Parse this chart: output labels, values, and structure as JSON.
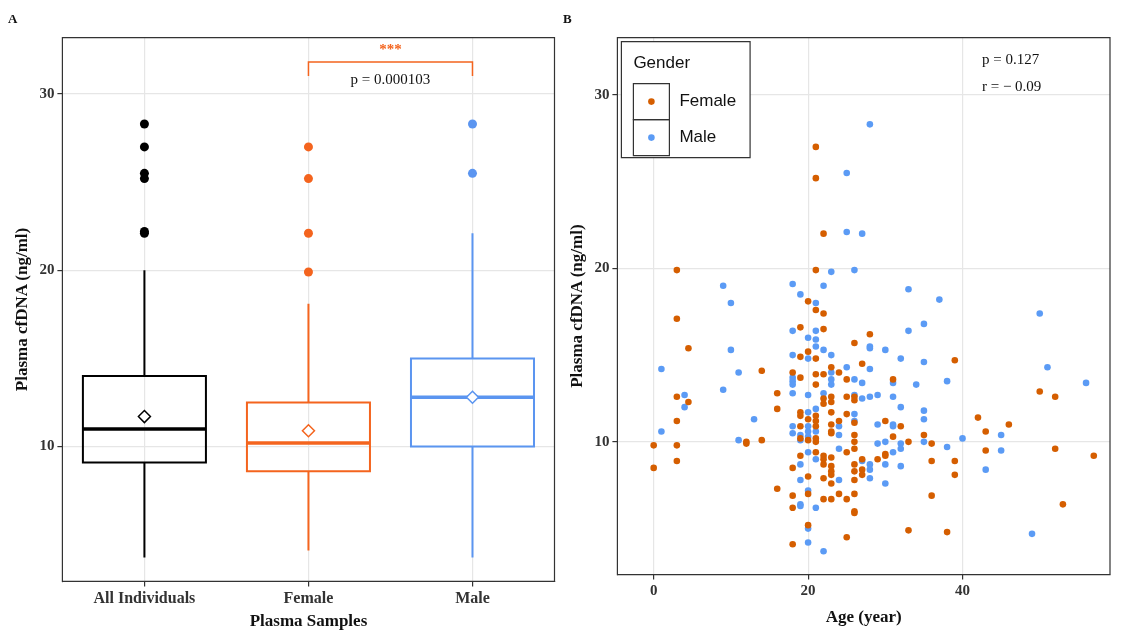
{
  "chart_data": [
    {
      "type": "box",
      "title": "A",
      "xlabel": "Plasma Samples",
      "ylabel": "Plasma cfDNA (ng/ml)",
      "categories": [
        "All Individuals",
        "Female",
        "Male"
      ],
      "colors": [
        "#000000",
        "#f4641e",
        "#5b95f0"
      ],
      "boxes": [
        {
          "low": 3.7,
          "q1": 9.1,
          "median": 11.0,
          "q3": 14.0,
          "high": 20.0,
          "mean": 11.7,
          "outliers": [
            28.3,
            27.0,
            25.5,
            25.2,
            22.2,
            22.1
          ]
        },
        {
          "low": 4.1,
          "q1": 8.6,
          "median": 10.2,
          "q3": 12.5,
          "high": 18.1,
          "mean": 10.9,
          "outliers": [
            27.0,
            25.2,
            22.1,
            19.9
          ]
        },
        {
          "low": 3.7,
          "q1": 10.0,
          "median": 12.8,
          "q3": 15.0,
          "high": 22.1,
          "mean": 12.8,
          "outliers": [
            28.3,
            25.5
          ]
        }
      ],
      "ylim": [
        2.35,
        33.2
      ],
      "yticks": [
        10,
        20,
        30
      ],
      "grid": true,
      "annotations": [
        "***",
        "p = 0.000103"
      ]
    },
    {
      "type": "scatter",
      "title": "B",
      "xlabel": "Age (year)",
      "ylabel": "Plasma cfDNA (ng/ml)",
      "legend_title": "Gender",
      "legend": "top left",
      "series": [
        {
          "name": "Female",
          "color": "#d55e00",
          "x": [
            21,
            21,
            22,
            3,
            21,
            20,
            21,
            22,
            3,
            19,
            22,
            4.5,
            19,
            20,
            21,
            23,
            14,
            18,
            21,
            22,
            24,
            19,
            21,
            16,
            22,
            22,
            23,
            23,
            3,
            4.5,
            16,
            23,
            19,
            19,
            21,
            21,
            20,
            3,
            19,
            21,
            23,
            24,
            23,
            23,
            19,
            20,
            21,
            21,
            12,
            12,
            14,
            0,
            3,
            0,
            3,
            21,
            19,
            22,
            22,
            23,
            22,
            23,
            18,
            23,
            20,
            22,
            23,
            23,
            16,
            20,
            18,
            24,
            23,
            22,
            18,
            20,
            18,
            28,
            26,
            27,
            31,
            39,
            50,
            52,
            25,
            26,
            26,
            25,
            25,
            26,
            30,
            32,
            42,
            46,
            43,
            31,
            35,
            33,
            36,
            43,
            52,
            57,
            26,
            26,
            26,
            25,
            30,
            30,
            29,
            36,
            39,
            39,
            27,
            27,
            27,
            26,
            26,
            26,
            36,
            53,
            25,
            26,
            26,
            26,
            33,
            38,
            25
          ],
          "values": [
            27.0,
            25.2,
            22.0,
            19.9,
            19.9,
            18.1,
            17.6,
            17.4,
            17.1,
            16.6,
            16.5,
            15.4,
            14.9,
            15.2,
            14.8,
            14.3,
            14.1,
            14.0,
            13.9,
            13.9,
            14.0,
            13.7,
            13.3,
            12.8,
            12.5,
            12.2,
            12.6,
            12.3,
            12.6,
            12.3,
            11.9,
            11.7,
            11.7,
            11.5,
            11.5,
            11.2,
            11.3,
            11.2,
            10.9,
            10.9,
            11.0,
            11.2,
            10.6,
            10.5,
            10.2,
            10.1,
            10.2,
            10.0,
            10.0,
            9.9,
            10.1,
            9.8,
            9.8,
            8.5,
            8.9,
            9.4,
            9.2,
            9.2,
            9.0,
            9.1,
            8.7,
            8.6,
            8.5,
            8.3,
            8.0,
            7.9,
            8.1,
            7.6,
            7.3,
            7.0,
            6.9,
            7.0,
            6.7,
            6.7,
            6.2,
            5.2,
            4.1,
            16.2,
            15.7,
            14.5,
            13.6,
            14.7,
            12.9,
            12.6,
            13.6,
            12.6,
            12.4,
            12.6,
            11.6,
            11.1,
            11.2,
            10.9,
            11.4,
            11.0,
            10.6,
            10.3,
            10.4,
            10.0,
            9.9,
            9.5,
            9.6,
            9.2,
            10.4,
            10.0,
            9.6,
            9.4,
            9.3,
            9.2,
            9.0,
            8.9,
            8.9,
            8.1,
            9.0,
            8.4,
            8.1,
            8.7,
            8.3,
            7.8,
            6.9,
            6.4,
            6.7,
            7.0,
            6.0,
            5.9,
            4.9,
            4.8,
            4.5
          ]
        },
        {
          "name": "Male",
          "color": "#5b9bf5",
          "x": [
            23,
            9,
            18,
            19,
            22,
            28,
            25,
            25,
            27,
            26,
            33,
            10,
            21,
            18,
            20,
            21,
            21,
            10,
            21,
            22,
            23,
            20,
            18,
            1,
            11,
            23,
            18,
            18,
            18,
            23,
            23,
            9,
            18,
            20,
            22,
            4,
            4,
            21,
            20,
            13,
            1,
            20,
            24,
            18,
            18,
            19,
            20,
            21,
            24,
            20,
            11,
            19,
            20,
            24,
            21,
            19,
            19,
            24,
            20,
            19,
            19,
            21,
            20,
            20,
            22,
            37,
            50,
            33,
            35,
            28,
            28,
            30,
            32,
            35,
            25,
            28,
            51,
            56,
            38,
            34,
            31,
            26,
            27,
            26,
            27,
            28,
            29,
            31,
            32,
            35,
            35,
            26,
            26,
            29,
            31,
            31,
            40,
            45,
            45,
            35,
            38,
            29,
            30,
            32,
            32,
            31,
            27,
            28,
            28,
            30,
            32,
            28,
            30,
            43,
            49
          ],
          "values": [
            19.8,
            19.0,
            19.1,
            18.5,
            19.0,
            28.3,
            25.5,
            22.1,
            22.0,
            19.9,
            18.8,
            18.0,
            18.0,
            16.4,
            16.0,
            16.4,
            15.9,
            15.3,
            15.5,
            15.3,
            15.0,
            14.8,
            15.0,
            14.2,
            14.0,
            14.0,
            13.7,
            13.5,
            13.3,
            13.6,
            13.3,
            13.0,
            12.8,
            12.7,
            12.8,
            12.7,
            12.0,
            11.9,
            11.7,
            11.3,
            10.6,
            10.9,
            10.9,
            10.9,
            10.5,
            10.4,
            10.6,
            10.6,
            10.4,
            10.3,
            10.1,
            10.1,
            9.4,
            9.6,
            9.0,
            8.7,
            7.8,
            7.8,
            7.2,
            6.4,
            6.3,
            6.2,
            5.0,
            4.2,
            3.7,
            18.2,
            17.4,
            16.4,
            16.8,
            15.5,
            15.4,
            15.3,
            14.8,
            14.6,
            14.3,
            14.2,
            14.3,
            13.4,
            13.5,
            13.3,
            13.4,
            13.6,
            13.4,
            12.7,
            12.5,
            12.6,
            12.7,
            12.6,
            12.0,
            11.8,
            11.3,
            11.6,
            11.2,
            11.0,
            11.0,
            10.9,
            10.2,
            10.4,
            9.5,
            10.0,
            9.7,
            9.9,
            10.0,
            9.9,
            9.6,
            9.4,
            8.9,
            8.7,
            8.4,
            8.7,
            8.6,
            7.9,
            7.6,
            8.4,
            4.7
          ]
        }
      ],
      "xlim": [
        -4.7,
        59.1
      ],
      "xticks": [
        0,
        20,
        40
      ],
      "ylim": [
        2.35,
        33.3
      ],
      "yticks": [
        10,
        20,
        30
      ],
      "grid": true,
      "annotations": [
        "p = 0.127",
        "r = − 0.09"
      ]
    }
  ]
}
